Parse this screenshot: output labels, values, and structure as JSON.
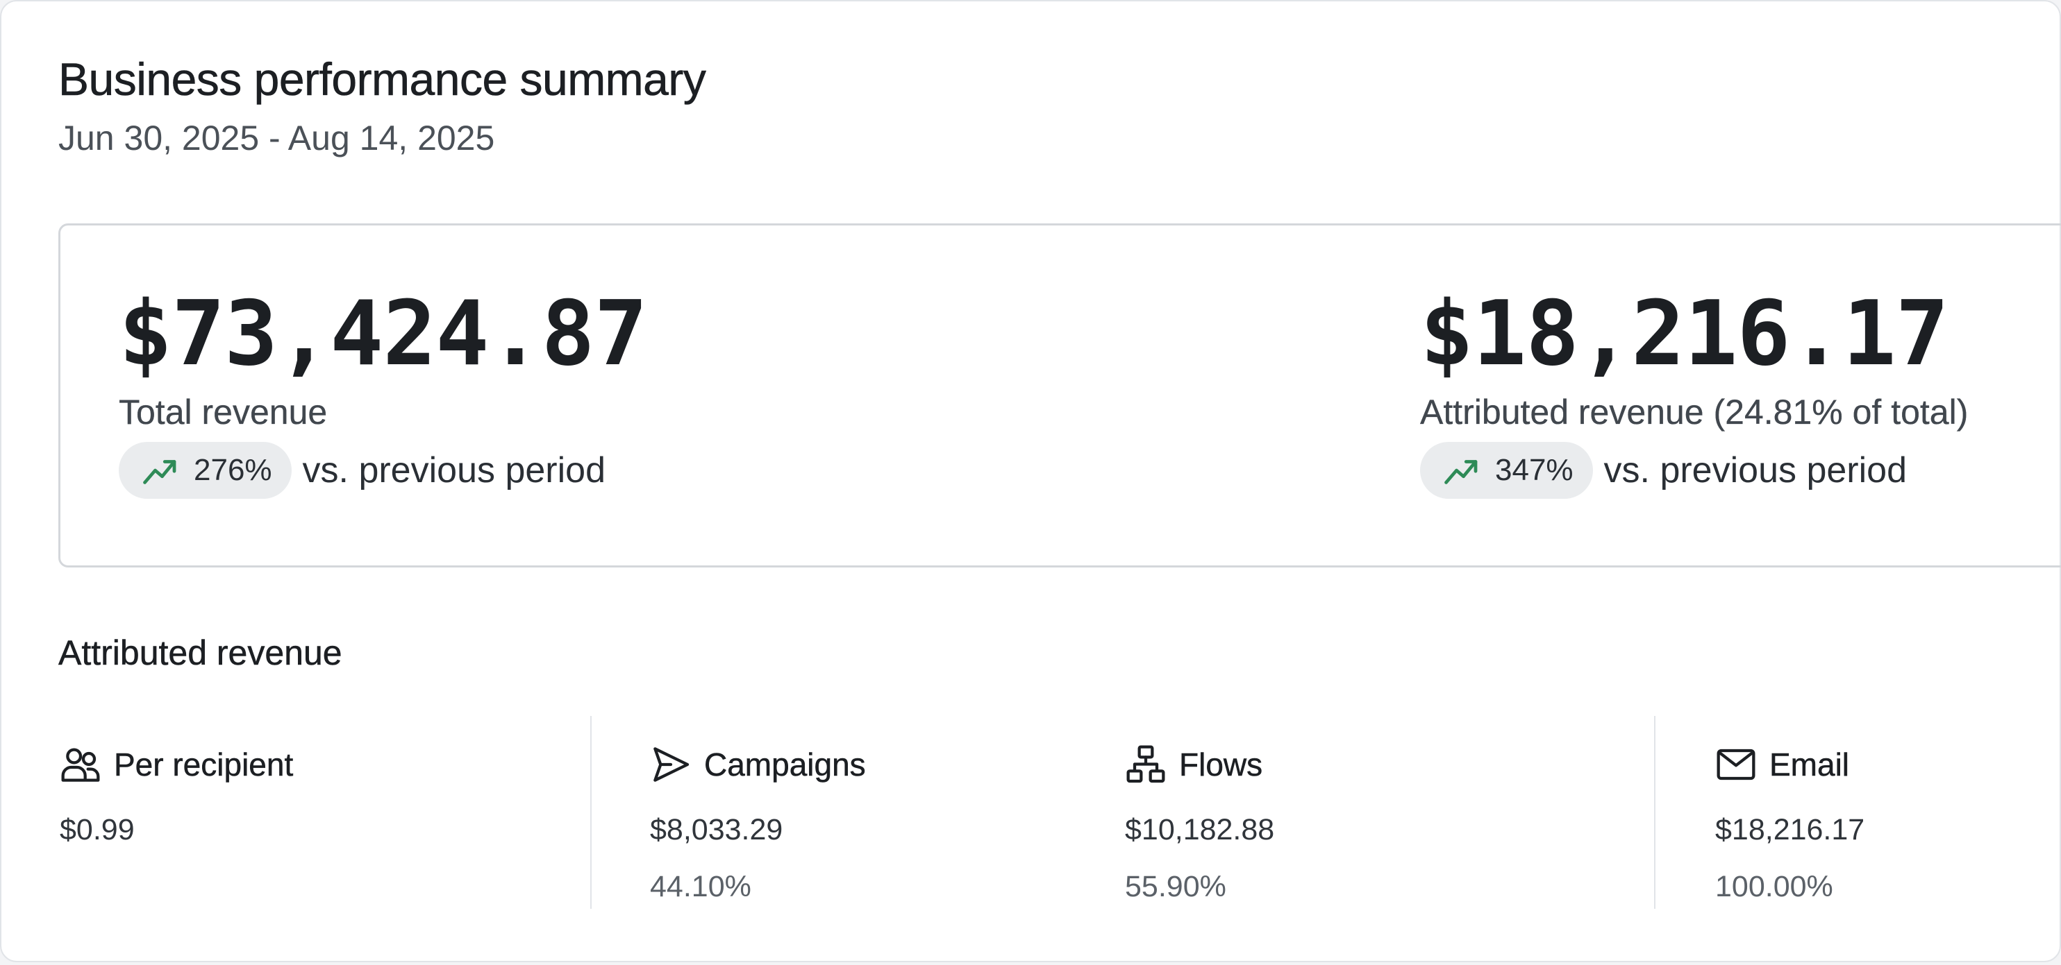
{
  "header": {
    "title": "Business performance summary",
    "date_range": "Jun 30, 2025 - Aug 14, 2025"
  },
  "kpis": [
    {
      "value": "$73,424.87",
      "label": "Total revenue",
      "trend_pct": "276%",
      "trend_suffix": "vs. previous period",
      "trend_direction": "up",
      "trend_icon": "trending-up-icon",
      "trend_color": "#2e8b57"
    },
    {
      "value": "$18,216.17",
      "label": "Attributed revenue (24.81% of total)",
      "trend_pct": "347%",
      "trend_suffix": "vs. previous period",
      "trend_direction": "up",
      "trend_icon": "trending-up-icon",
      "trend_color": "#2e8b57"
    }
  ],
  "attributed_revenue": {
    "title": "Attributed revenue",
    "metrics": [
      {
        "icon": "users-icon",
        "label": "Per recipient",
        "value": "$0.99",
        "pct": ""
      },
      {
        "icon": "send-icon",
        "label": "Campaigns",
        "value": "$8,033.29",
        "pct": "44.10%"
      },
      {
        "icon": "flows-icon",
        "label": "Flows",
        "value": "$10,182.88",
        "pct": "55.90%"
      },
      {
        "icon": "mail-icon",
        "label": "Email",
        "value": "$18,216.17",
        "pct": "100.00%"
      }
    ]
  }
}
